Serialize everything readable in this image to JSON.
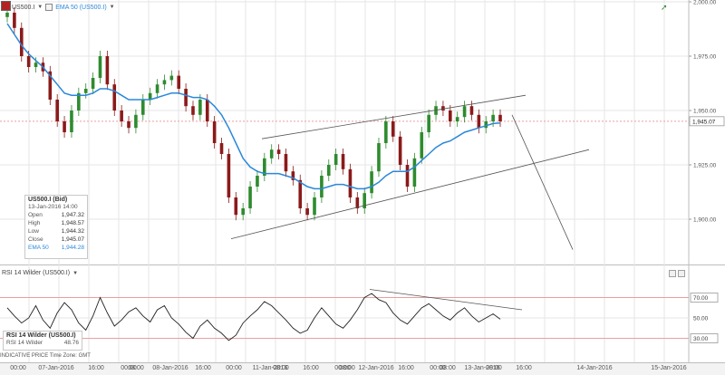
{
  "header": {
    "symbol": "US500.I",
    "indicator": "EMA 50 (US500.I)"
  },
  "main_chart": {
    "y_ticks": [
      "2,000.00",
      "1,975.00",
      "1,950.00",
      "1,925.00",
      "1,900.00"
    ],
    "current_price": "1,945.07",
    "current_price_value": 1945.07,
    "ylim": [
      1880,
      2000
    ]
  },
  "info_box": {
    "title": "US500.I (Bid)",
    "datetime": "13-Jan-2016 14:00",
    "rows": [
      {
        "label": "Open",
        "value": "1,947.32"
      },
      {
        "label": "High",
        "value": "1,948.57"
      },
      {
        "label": "Low",
        "value": "1,944.32"
      },
      {
        "label": "Close",
        "value": "1,945.07"
      },
      {
        "label": "EMA 50",
        "value": "1,944.28"
      }
    ]
  },
  "rsi": {
    "title": "RSI 14 Wilder (US500.I)",
    "box_title": "RSI 14 Wilder (US500.I)",
    "box_label": "RSI 14 Wilder",
    "box_value": "48.76",
    "levels": [
      "70.00",
      "50.00",
      "30.00"
    ]
  },
  "status_bar": "INDICATIVE PRICE    Time Zone: GMT",
  "x_ticks": [
    "00:00",
    "07-Jan-2016",
    "16:00",
    "00:00",
    "08:00",
    "08-Jan-2016",
    "16:00",
    "00:00",
    "11-Jan-2016",
    "08:00",
    "16:00",
    "00:00",
    "08:00",
    "12-Jan-2016",
    "16:00",
    "00:00",
    "08:00",
    "13-Jan-2016",
    "08:00",
    "16:00",
    "14-Jan-2016",
    "15-Jan-2016"
  ],
  "colors": {
    "candle_up": "#2e8b2e",
    "candle_down": "#8b1a1a",
    "ema": "#2b88d8",
    "rsi_line": "#222222",
    "level_line": "#e8a0a0"
  },
  "chart_data": {
    "type": "line",
    "series": [
      {
        "name": "US500.I",
        "values": [
          1995,
          1988,
          1975,
          1970,
          1972,
          1968,
          1955,
          1945,
          1940,
          1950,
          1958,
          1960,
          1965,
          1975,
          1962,
          1950,
          1945,
          1942,
          1948,
          1955,
          1958,
          1962,
          1964,
          1966,
          1960,
          1952,
          1948,
          1955,
          1945,
          1935,
          1930,
          1910,
          1902,
          1905,
          1915,
          1920,
          1928,
          1932,
          1930,
          1922,
          1918,
          1905,
          1902,
          1910,
          1920,
          1925,
          1930,
          1923,
          1910,
          1905,
          1912,
          1922,
          1935,
          1945,
          1938,
          1925,
          1915,
          1928,
          1940,
          1948,
          1952,
          1950,
          1945,
          1947,
          1952,
          1948,
          1942,
          1945,
          1948,
          1945
        ]
      },
      {
        "name": "EMA 50",
        "values": [
          1990,
          1985,
          1980,
          1976,
          1973,
          1970,
          1966,
          1962,
          1958,
          1957,
          1957,
          1957,
          1958,
          1960,
          1960,
          1959,
          1957,
          1955,
          1955,
          1955,
          1955,
          1956,
          1957,
          1958,
          1958,
          1957,
          1956,
          1956,
          1955,
          1952,
          1948,
          1942,
          1935,
          1928,
          1924,
          1922,
          1921,
          1921,
          1921,
          1920,
          1919,
          1917,
          1915,
          1914,
          1914,
          1915,
          1916,
          1916,
          1915,
          1914,
          1914,
          1915,
          1917,
          1920,
          1922,
          1922,
          1922,
          1924,
          1927,
          1930,
          1933,
          1935,
          1936,
          1938,
          1940,
          1941,
          1942,
          1943,
          1944,
          1944.28
        ]
      }
    ],
    "rsi": [
      60,
      52,
      45,
      50,
      62,
      48,
      40,
      55,
      65,
      58,
      45,
      38,
      52,
      70,
      55,
      42,
      48,
      56,
      60,
      52,
      46,
      58,
      62,
      50,
      44,
      36,
      30,
      42,
      48,
      40,
      35,
      28,
      33,
      45,
      52,
      58,
      66,
      62,
      55,
      48,
      40,
      35,
      38,
      50,
      60,
      52,
      44,
      40,
      48,
      58,
      70,
      74,
      68,
      65,
      55,
      48,
      44,
      52,
      60,
      64,
      58,
      52,
      48,
      55,
      60,
      52,
      46,
      50,
      54,
      48.76
    ],
    "ylim": [
      1880,
      2000
    ],
    "rsi_ylim": [
      10,
      90
    ]
  }
}
